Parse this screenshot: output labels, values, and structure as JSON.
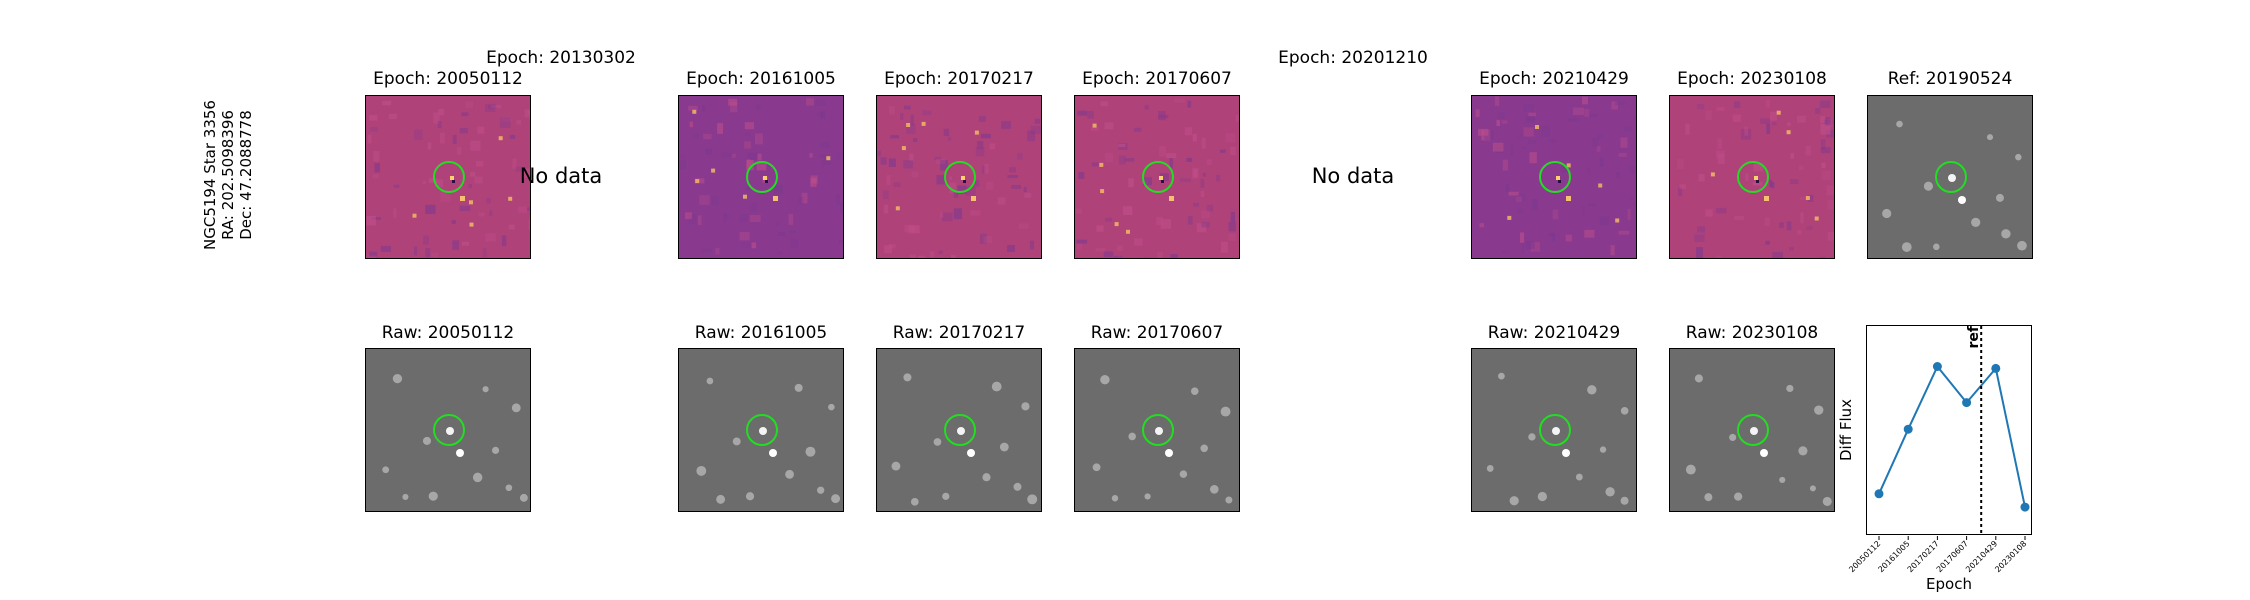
{
  "star_label": {
    "name": "NGC5194 Star 3356",
    "ra": "RA: 202.5098396",
    "dec": "Dec: 47.2088778"
  },
  "diff_row": [
    {
      "title": "Epoch: 20050112",
      "has_data": true
    },
    {
      "title": "Epoch: 20130302",
      "has_data": false,
      "no_data_text": "No data"
    },
    {
      "title": "Epoch: 20161005",
      "has_data": true
    },
    {
      "title": "Epoch: 20170217",
      "has_data": true
    },
    {
      "title": "Epoch: 20170607",
      "has_data": true
    },
    {
      "title": "Epoch: 20201210",
      "has_data": false,
      "no_data_text": "No data"
    },
    {
      "title": "Epoch: 20210429",
      "has_data": true
    },
    {
      "title": "Epoch: 20230108",
      "has_data": true
    },
    {
      "title": "Ref: 20190524",
      "has_data": true
    }
  ],
  "raw_row": [
    {
      "title": "Raw: 20050112"
    },
    {
      "title": "Raw: 20161005"
    },
    {
      "title": "Raw: 20170217"
    },
    {
      "title": "Raw: 20170607"
    },
    {
      "title": "Raw: 20210429"
    },
    {
      "title": "Raw: 20230108"
    }
  ],
  "colors": {
    "diff_background": "#b0427a",
    "diff_background_alt": "#8a3a8e",
    "raw_background": "#6c6c6c",
    "circle": "#22dd22",
    "line": "#1f77b4"
  },
  "chart_data": {
    "type": "line",
    "xlabel": "Epoch",
    "ylabel": "Diff Flux",
    "categories": [
      "20050112",
      "20161005",
      "20170217",
      "20170607",
      "20210429",
      "20230108"
    ],
    "values": [
      0.18,
      0.52,
      0.85,
      0.66,
      0.84,
      0.11
    ],
    "ref_label": "ref",
    "ref_position_between": [
      "20170607",
      "20210429"
    ],
    "ylim": [
      0,
      1
    ]
  }
}
